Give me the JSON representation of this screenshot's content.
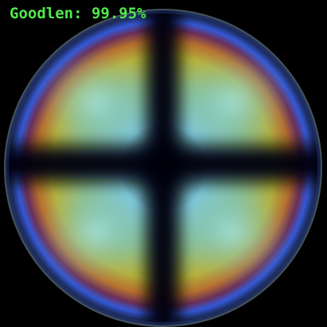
{
  "overlay": {
    "label": "Goodlen:",
    "value": "99.95%",
    "color": "#52e84e"
  },
  "image": {
    "icon": "birefringence-sphere-icon",
    "colors": {
      "background": "#000000",
      "outer_ring": "#3a5cd8",
      "orange_ring": "#b86a2c",
      "yellow_ring": "#b7b33e",
      "inner_glow": "#8fd7e6",
      "cross": "#02040a",
      "rim": "#4a5a60"
    }
  }
}
